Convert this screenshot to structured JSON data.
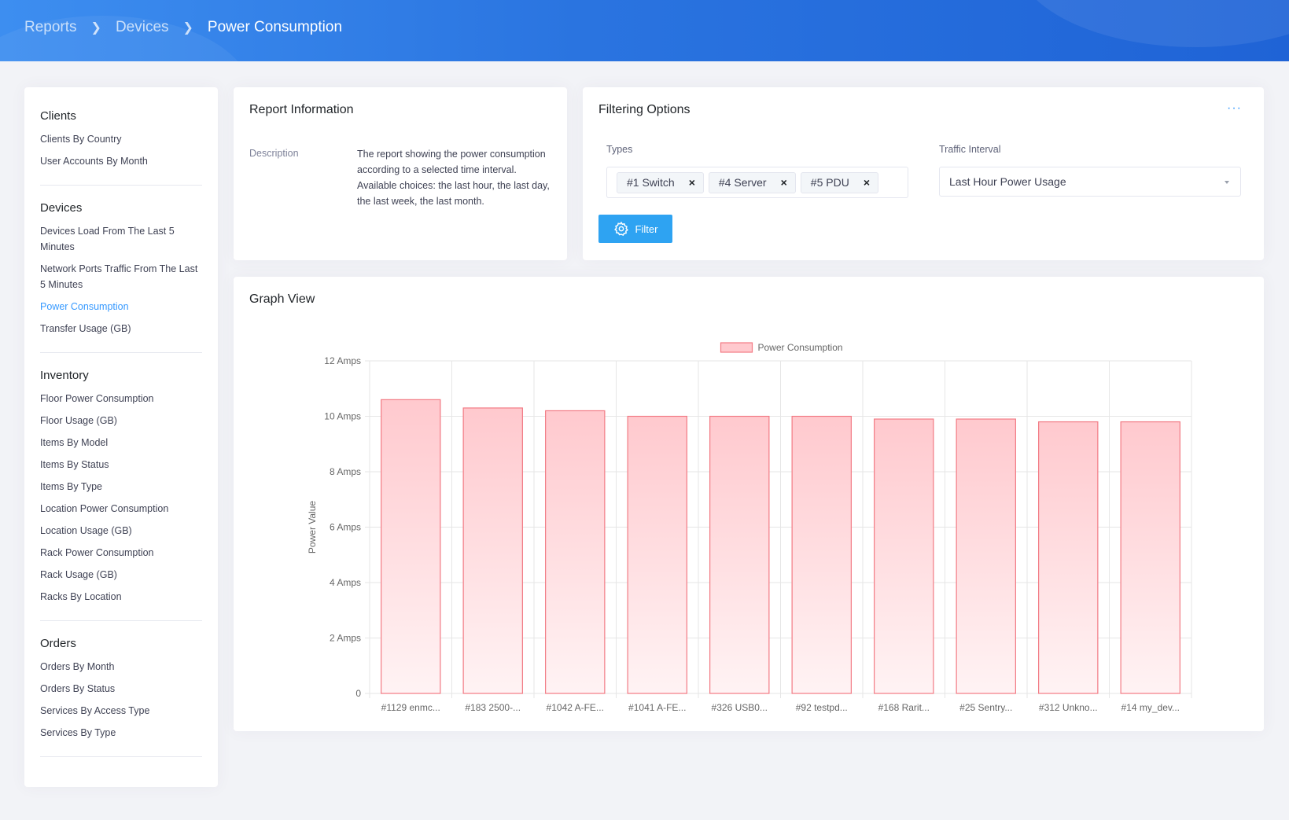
{
  "breadcrumb": [
    "Reports",
    "Devices",
    "Power Consumption"
  ],
  "sidebar": {
    "groups": [
      {
        "title": "Clients",
        "items": [
          "Clients By Country",
          "User Accounts By Month"
        ]
      },
      {
        "title": "Devices",
        "items": [
          "Devices Load From The Last 5 Minutes",
          "Network Ports Traffic From The Last 5 Minutes",
          "Power Consumption",
          "Transfer Usage (GB)"
        ]
      },
      {
        "title": "Inventory",
        "items": [
          "Floor Power Consumption",
          "Floor Usage (GB)",
          "Items By Model",
          "Items By Status",
          "Items By Type",
          "Location Power Consumption",
          "Location Usage (GB)",
          "Rack Power Consumption",
          "Rack Usage (GB)",
          "Racks By Location"
        ]
      },
      {
        "title": "Orders",
        "items": [
          "Orders By Month",
          "Orders By Status",
          "Services By Access Type",
          "Services By Type"
        ]
      }
    ],
    "active_item": "Power Consumption"
  },
  "report_info": {
    "title": "Report Information",
    "description_label": "Description",
    "description": "The report showing the power consumption according to a selected time interval. Available choices: the last hour, the last day, the last week, the last month."
  },
  "filtering": {
    "title": "Filtering Options",
    "more_label": "···",
    "types_label": "Types",
    "types": [
      "#1 Switch",
      "#4 Server",
      "#5 PDU"
    ],
    "chip_remove": "×",
    "interval_label": "Traffic Interval",
    "interval_value": "Last Hour Power Usage",
    "filter_button": "Filter"
  },
  "graph": {
    "title": "Graph View"
  },
  "chart_data": {
    "type": "bar",
    "categories": [
      "#1129 enmc...",
      "#183 2500-...",
      "#1042 A-FE...",
      "#1041 A-FE...",
      "#326 USB0...",
      "#92 testpd...",
      "#168 Rarit...",
      "#25 Sentry...",
      "#312 Unkno...",
      "#14 my_dev..."
    ],
    "series": [
      {
        "name": "Power Consumption",
        "values": [
          10.6,
          10.3,
          10.2,
          10.0,
          10.0,
          10.0,
          9.9,
          9.9,
          9.8,
          9.8
        ]
      }
    ],
    "ylabel": "Power Value",
    "ylim": [
      0,
      12
    ],
    "yticks": [
      {
        "value": 0,
        "label": "0"
      },
      {
        "value": 2,
        "label": "2 Amps"
      },
      {
        "value": 4,
        "label": "4 Amps"
      },
      {
        "value": 6,
        "label": "6 Amps"
      },
      {
        "value": 8,
        "label": "8 Amps"
      },
      {
        "value": 10,
        "label": "10 Amps"
      },
      {
        "value": 12,
        "label": "12 Amps"
      }
    ],
    "grid": true,
    "legend": "top-center",
    "colors": {
      "bar_fill": "#ffc9ce",
      "bar_fill_bottom": "#fff3f4",
      "bar_stroke": "#f27a84",
      "grid": "#e6e6e6",
      "axis_text": "#666666"
    }
  }
}
